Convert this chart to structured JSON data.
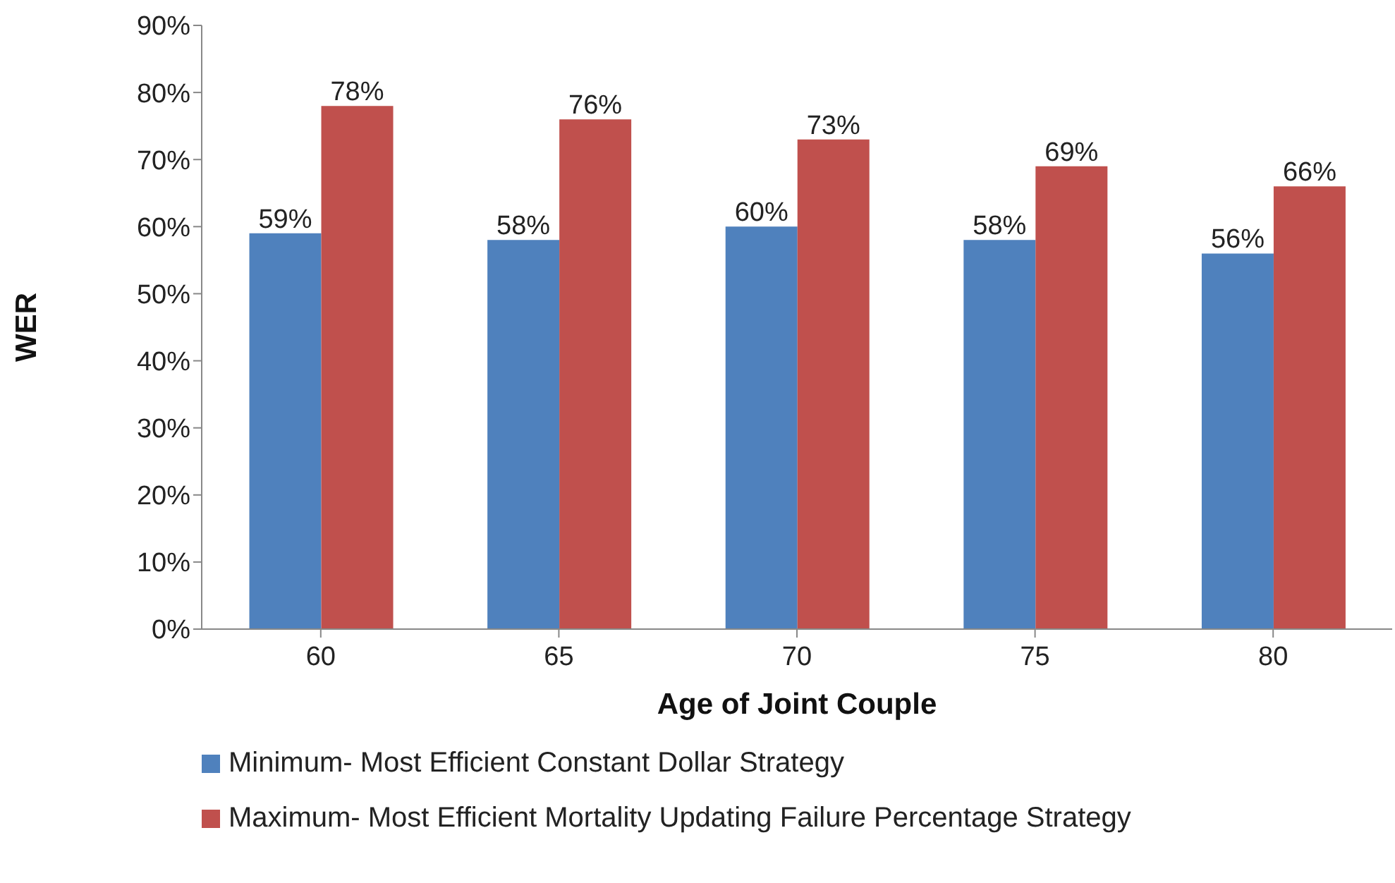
{
  "chart_data": {
    "type": "bar",
    "xlabel": "Age of Joint Couple",
    "ylabel": "WER",
    "categories": [
      "60",
      "65",
      "70",
      "75",
      "80"
    ],
    "series": [
      {
        "name": "Minimum- Most Efficient Constant Dollar Strategy",
        "color": "#4f81bd",
        "values": [
          59,
          58,
          60,
          58,
          56
        ],
        "value_labels": [
          "59%",
          "58%",
          "60%",
          "58%",
          "56%"
        ]
      },
      {
        "name": "Maximum- Most Efficient Mortality Updating Failure Percentage Strategy",
        "color": "#c0504d",
        "values": [
          78,
          76,
          73,
          69,
          66
        ],
        "value_labels": [
          "78%",
          "76%",
          "73%",
          "69%",
          "66%"
        ]
      }
    ],
    "ylim": [
      0,
      90
    ],
    "yticks": [
      {
        "value": 0,
        "label": "0%"
      },
      {
        "value": 10,
        "label": "10%"
      },
      {
        "value": 20,
        "label": "20%"
      },
      {
        "value": 30,
        "label": "30%"
      },
      {
        "value": 40,
        "label": "40%"
      },
      {
        "value": 50,
        "label": "50%"
      },
      {
        "value": 60,
        "label": "60%"
      },
      {
        "value": 70,
        "label": "70%"
      },
      {
        "value": 80,
        "label": "80%"
      },
      {
        "value": 90,
        "label": "90%"
      }
    ],
    "grid": false,
    "legend": "bottom"
  }
}
